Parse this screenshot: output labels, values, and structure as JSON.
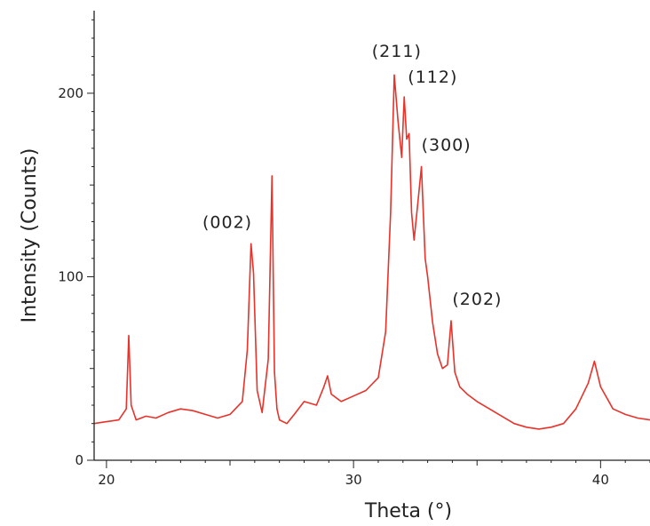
{
  "chart_data": {
    "type": "line",
    "xlabel": "Theta (°)",
    "ylabel": "Intensity (Counts)",
    "xlim": [
      19.5,
      42
    ],
    "ylim": [
      0,
      245
    ],
    "x_ticks": [
      20,
      30,
      40
    ],
    "y_ticks": [
      0,
      100,
      200
    ],
    "grid": false,
    "colors": {
      "series": "#e8322a",
      "axis": "#222222"
    },
    "series": [
      {
        "x": [
          19.5,
          20.0,
          20.5,
          20.8,
          20.9,
          21.0,
          21.2,
          21.6,
          22.0,
          22.5,
          23.0,
          23.5,
          24.0,
          24.5,
          25.0,
          25.5,
          25.7,
          25.85,
          25.95,
          26.1,
          26.3,
          26.55,
          26.7,
          26.8,
          26.9,
          27.0,
          27.3,
          27.6,
          28.0,
          28.5,
          28.8,
          28.95,
          29.1,
          29.5,
          30.0,
          30.5,
          31.0,
          31.3,
          31.5,
          31.65,
          31.8,
          31.95,
          32.05,
          32.15,
          32.25,
          32.35,
          32.45,
          32.6,
          32.75,
          32.9,
          33.0,
          33.2,
          33.4,
          33.6,
          33.8,
          33.95,
          34.1,
          34.3,
          34.6,
          35.0,
          35.5,
          36.0,
          36.5,
          37.0,
          37.5,
          38.0,
          38.5,
          39.0,
          39.5,
          39.75,
          40.0,
          40.5,
          41.0,
          41.5,
          42.0
        ],
        "y": [
          20,
          21,
          22,
          28,
          68,
          30,
          22,
          24,
          23,
          26,
          28,
          27,
          25,
          23,
          25,
          32,
          60,
          118,
          102,
          38,
          26,
          55,
          155,
          48,
          28,
          22,
          20,
          25,
          32,
          30,
          40,
          46,
          36,
          32,
          35,
          38,
          45,
          70,
          135,
          210,
          185,
          165,
          198,
          175,
          178,
          135,
          120,
          140,
          160,
          110,
          100,
          75,
          58,
          50,
          52,
          76,
          48,
          40,
          36,
          32,
          28,
          24,
          20,
          18,
          17,
          18,
          20,
          28,
          42,
          54,
          40,
          28,
          25,
          23,
          22
        ]
      }
    ],
    "annotations": [
      {
        "text": "(002)",
        "x": 25.9,
        "y": 118
      },
      {
        "text": "(211)",
        "x": 31.75,
        "y": 212
      },
      {
        "text": "(112)",
        "x": 32.2,
        "y": 200
      },
      {
        "text": "(300)",
        "x": 32.75,
        "y": 162
      },
      {
        "text": "(202)",
        "x": 34.0,
        "y": 78
      }
    ]
  }
}
